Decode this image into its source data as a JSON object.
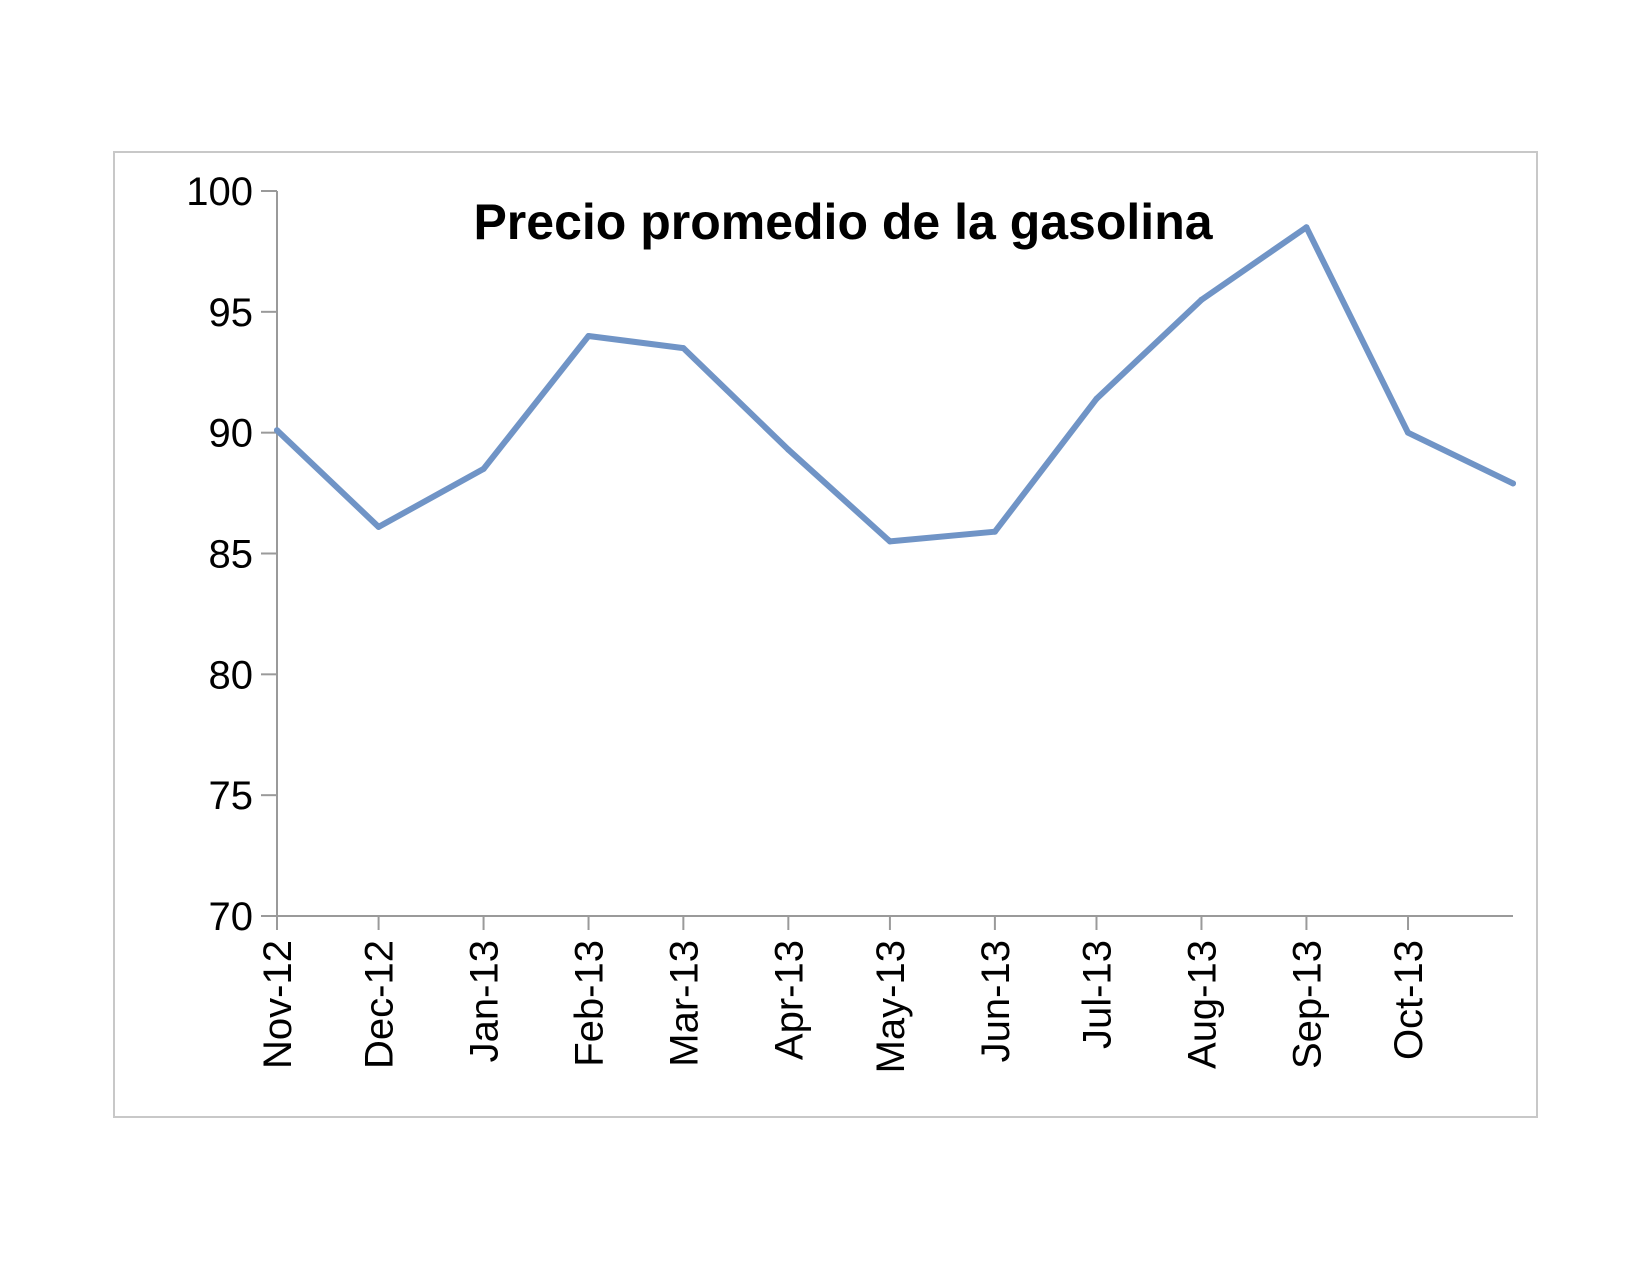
{
  "chart_data": {
    "type": "line",
    "title": "Precio promedio de la gasolina",
    "xlabel": "",
    "ylabel": "",
    "ylim": [
      70,
      100
    ],
    "yticks": [
      70,
      75,
      80,
      85,
      90,
      95,
      100
    ],
    "x_tick_labels": [
      "Nov-12",
      "Dec-12",
      "Jan-13",
      "Feb-13",
      "Mar-13",
      "Apr-13",
      "May-13",
      "Jun-13",
      "Jul-13",
      "Aug-13",
      "Sep-13",
      "Oct-13"
    ],
    "grid": false,
    "legend": "none",
    "series": [
      {
        "color": "#7094c6",
        "points": [
          {
            "x": "2012-11-01",
            "y": 90.1
          },
          {
            "x": "2012-12-01",
            "y": 86.1
          },
          {
            "x": "2013-01-01",
            "y": 88.5
          },
          {
            "x": "2013-02-01",
            "y": 94.0
          },
          {
            "x": "2013-03-01",
            "y": 93.5
          },
          {
            "x": "2013-04-01",
            "y": 89.3
          },
          {
            "x": "2013-05-01",
            "y": 85.5
          },
          {
            "x": "2013-06-01",
            "y": 85.9
          },
          {
            "x": "2013-07-01",
            "y": 91.4
          },
          {
            "x": "2013-08-01",
            "y": 95.5
          },
          {
            "x": "2013-09-01",
            "y": 98.5
          },
          {
            "x": "2013-10-01",
            "y": 90.0
          },
          {
            "x": "2013-11-01",
            "y": 87.9
          }
        ]
      }
    ]
  }
}
